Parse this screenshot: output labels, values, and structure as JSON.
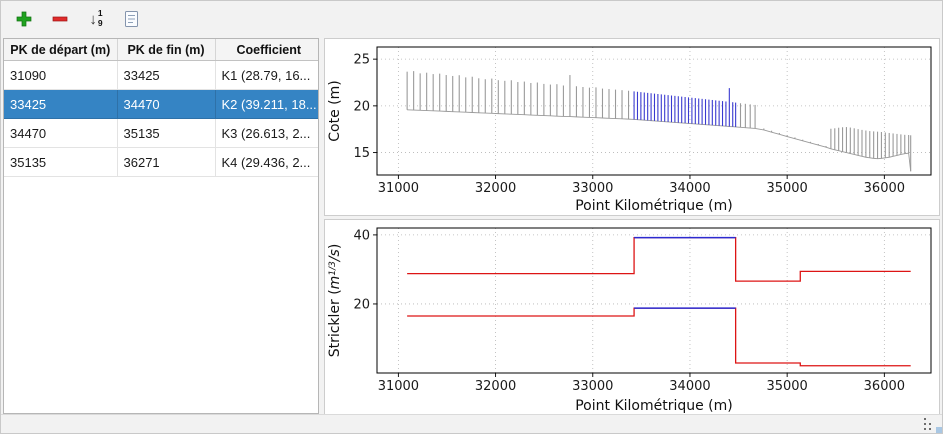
{
  "toolbar": {
    "sort_digits": [
      "1",
      "9"
    ],
    "buttons": [
      {
        "name": "add",
        "icon": "plus-icon"
      },
      {
        "name": "remove",
        "icon": "minus-icon"
      },
      {
        "name": "sort-numeric",
        "icon": "sort-numeric-icon"
      },
      {
        "name": "notes",
        "icon": "document-icon"
      }
    ],
    "colors": {
      "plus": "#1fa21f",
      "minus": "#e02b2b"
    }
  },
  "table": {
    "columns": [
      "PK de départ (m)",
      "PK de fin (m)",
      "Coefficient"
    ],
    "rows": [
      [
        "31090",
        "33425",
        "K1 (28.79, 16..."
      ],
      [
        "33425",
        "34470",
        "K2 (39.211, 18..."
      ],
      [
        "34470",
        "35135",
        "K3 (26.613, 2..."
      ],
      [
        "35135",
        "36271",
        "K4 (29.436, 2..."
      ]
    ],
    "selected_row": 1,
    "selection_color": "#3584c4"
  },
  "chart_data": [
    {
      "type": "bar",
      "name": "cote-profile",
      "xlabel": "Point Kilométrique (m)",
      "ylabel": "Cote (m)",
      "x_range": [
        30780,
        36480
      ],
      "y_range": [
        12.6,
        26.3
      ],
      "x_ticks": [
        31000,
        32000,
        33000,
        34000,
        35000,
        36000
      ],
      "y_ticks": [
        15,
        20,
        25
      ],
      "grid": true,
      "highlight_range": [
        33425,
        34470
      ],
      "colors": {
        "bar": "#9a9a9a",
        "highlight": "#3a3ad0"
      },
      "bars": [
        [
          31090,
          19.58,
          23.66
        ],
        [
          31157,
          19.55,
          23.72
        ],
        [
          31224,
          19.52,
          23.48
        ],
        [
          31291,
          19.5,
          23.55
        ],
        [
          31358,
          19.47,
          23.4
        ],
        [
          31425,
          19.44,
          23.45
        ],
        [
          31492,
          19.41,
          23.3
        ],
        [
          31559,
          19.38,
          23.2
        ],
        [
          31626,
          19.35,
          23.28
        ],
        [
          31693,
          19.32,
          23.05
        ],
        [
          31760,
          19.29,
          23.12
        ],
        [
          31827,
          19.26,
          22.95
        ],
        [
          31894,
          19.23,
          22.85
        ],
        [
          31961,
          19.2,
          22.92
        ],
        [
          32028,
          19.17,
          22.75
        ],
        [
          32095,
          19.14,
          22.68
        ],
        [
          32162,
          19.11,
          22.74
        ],
        [
          32229,
          19.08,
          22.55
        ],
        [
          32296,
          19.05,
          22.6
        ],
        [
          32363,
          19.02,
          22.45
        ],
        [
          32430,
          18.99,
          22.5
        ],
        [
          32497,
          18.96,
          22.35
        ],
        [
          32564,
          18.93,
          22.28
        ],
        [
          32631,
          18.9,
          22.32
        ],
        [
          32698,
          18.87,
          22.18
        ],
        [
          32765,
          18.85,
          23.3
        ],
        [
          32832,
          18.82,
          22.1
        ],
        [
          32899,
          18.79,
          22.02
        ],
        [
          32966,
          18.76,
          21.95
        ],
        [
          33033,
          18.73,
          21.98
        ],
        [
          33100,
          18.7,
          21.85
        ],
        [
          33167,
          18.67,
          21.8
        ],
        [
          33234,
          18.64,
          21.74
        ],
        [
          33301,
          18.61,
          21.68
        ],
        [
          33368,
          18.58,
          21.62
        ],
        [
          33425,
          18.55,
          21.55
        ],
        [
          33460,
          18.52,
          21.51
        ],
        [
          33495,
          18.5,
          21.47
        ],
        [
          33530,
          18.47,
          21.43
        ],
        [
          33565,
          18.44,
          21.39
        ],
        [
          33600,
          18.42,
          21.35
        ],
        [
          33635,
          18.39,
          21.31
        ],
        [
          33670,
          18.36,
          21.27
        ],
        [
          33705,
          18.33,
          21.23
        ],
        [
          33740,
          18.31,
          21.19
        ],
        [
          33775,
          18.28,
          21.15
        ],
        [
          33810,
          18.25,
          21.11
        ],
        [
          33845,
          18.23,
          21.07
        ],
        [
          33880,
          18.2,
          21.03
        ],
        [
          33915,
          18.17,
          20.99
        ],
        [
          33950,
          18.15,
          20.95
        ],
        [
          33985,
          18.12,
          20.91
        ],
        [
          34020,
          18.09,
          20.87
        ],
        [
          34055,
          18.06,
          20.83
        ],
        [
          34090,
          18.04,
          20.79
        ],
        [
          34125,
          18.01,
          20.75
        ],
        [
          34160,
          17.98,
          20.71
        ],
        [
          34195,
          17.96,
          20.67
        ],
        [
          34230,
          17.93,
          20.63
        ],
        [
          34265,
          17.9,
          20.59
        ],
        [
          34300,
          17.88,
          20.55
        ],
        [
          34335,
          17.85,
          20.51
        ],
        [
          34370,
          17.82,
          20.47
        ],
        [
          34405,
          17.79,
          21.9
        ],
        [
          34440,
          17.77,
          20.39
        ],
        [
          34470,
          17.74,
          20.35
        ],
        [
          34520,
          17.7,
          20.28
        ],
        [
          34570,
          17.66,
          20.22
        ],
        [
          34620,
          17.62,
          20.16
        ],
        [
          34670,
          17.58,
          20.1
        ],
        [
          34760,
          17.42,
          17.58
        ],
        [
          34840,
          17.18,
          17.34
        ],
        [
          34920,
          16.95,
          17.1
        ],
        [
          35000,
          16.72,
          16.86
        ],
        [
          35080,
          16.49,
          16.62
        ],
        [
          35160,
          16.26,
          16.38
        ],
        [
          35240,
          16.03,
          16.15
        ],
        [
          35320,
          15.8,
          15.92
        ],
        [
          35400,
          15.58,
          15.7
        ],
        [
          35450,
          15.4,
          17.55
        ],
        [
          35490,
          15.3,
          17.6
        ],
        [
          35530,
          15.2,
          17.66
        ],
        [
          35570,
          15.1,
          17.71
        ],
        [
          35610,
          15.0,
          17.73
        ],
        [
          35650,
          14.9,
          17.68
        ],
        [
          35690,
          14.8,
          17.6
        ],
        [
          35730,
          14.7,
          17.51
        ],
        [
          35770,
          14.6,
          17.43
        ],
        [
          35810,
          14.5,
          17.36
        ],
        [
          35850,
          14.44,
          17.3
        ],
        [
          35890,
          14.38,
          17.27
        ],
        [
          35930,
          14.35,
          17.24
        ],
        [
          35970,
          14.38,
          17.2
        ],
        [
          36010,
          14.44,
          17.15
        ],
        [
          36050,
          14.5,
          17.1
        ],
        [
          36090,
          14.6,
          17.05
        ],
        [
          36130,
          14.7,
          17.0
        ],
        [
          36170,
          14.8,
          16.95
        ],
        [
          36210,
          14.88,
          16.9
        ],
        [
          36250,
          14.94,
          16.88
        ],
        [
          36271,
          13.0,
          16.85
        ]
      ]
    },
    {
      "type": "line",
      "name": "strickler-steps",
      "xlabel": "Point Kilométrique (m)",
      "ylabel": "Strickler (m^{1/3}/s)",
      "ylabel_parts": [
        {
          "t": "Strickler ("
        },
        {
          "t": "m",
          "i": 1
        },
        {
          "t": "1/3",
          "i": 1,
          "sup": 1
        },
        {
          "t": "/s",
          "i": 1
        },
        {
          "t": ")"
        }
      ],
      "x_range": [
        30780,
        36480
      ],
      "y_range": [
        0,
        42
      ],
      "x_ticks": [
        31000,
        32000,
        33000,
        34000,
        35000,
        36000
      ],
      "y_ticks": [
        20,
        40
      ],
      "grid": true,
      "highlight_range": [
        33425,
        34470
      ],
      "colors": {
        "line": "#dd1414",
        "highlight": "#2b2bd1"
      },
      "series": [
        {
          "name": "strickler-minor-bed",
          "steps": [
            [
              31090,
              33425,
              28.79
            ],
            [
              33425,
              34470,
              39.211
            ],
            [
              34470,
              35135,
              26.613
            ],
            [
              35135,
              36271,
              29.436
            ]
          ]
        },
        {
          "name": "strickler-major-bed",
          "steps": [
            [
              31090,
              33425,
              16.5
            ],
            [
              33425,
              34470,
              18.8
            ],
            [
              34470,
              35135,
              2.9
            ],
            [
              35135,
              36271,
              2.1
            ]
          ]
        }
      ]
    }
  ]
}
